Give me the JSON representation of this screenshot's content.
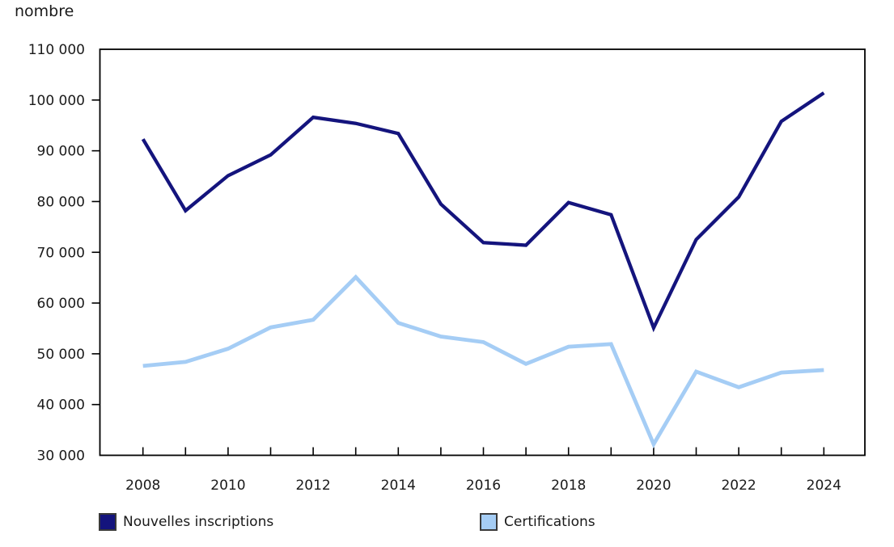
{
  "axis_title": "nombre",
  "colors": {
    "navy": "#14147d",
    "light_blue": "#a5cdf5",
    "axis": "#000000",
    "text": "#1a1a1a",
    "background": "#ffffff"
  },
  "legend": [
    {
      "label": "Nouvelles inscriptions",
      "color": "#14147d"
    },
    {
      "label": "Certifications",
      "color": "#a5cdf5"
    }
  ],
  "chart_data": {
    "type": "line",
    "title": "",
    "ylabel": "nombre",
    "xlabel": "",
    "x": [
      2008,
      2009,
      2010,
      2011,
      2012,
      2013,
      2014,
      2015,
      2016,
      2017,
      2018,
      2019,
      2020,
      2021,
      2022,
      2023,
      2024
    ],
    "x_tick_labels": [
      "2008",
      "2010",
      "2012",
      "2014",
      "2016",
      "2018",
      "2020",
      "2022",
      "2024"
    ],
    "ylim": [
      30000,
      110000
    ],
    "y_ticks": [
      30000,
      40000,
      50000,
      60000,
      70000,
      80000,
      90000,
      100000,
      110000
    ],
    "y_tick_labels": [
      "30 000",
      "40 000",
      "50 000",
      "60 000",
      "70 000",
      "80 000",
      "90 000",
      "100 000",
      "110 000"
    ],
    "grid": false,
    "legend_position": "bottom",
    "series": [
      {
        "name": "Nouvelles inscriptions",
        "color": "#14147d",
        "values": [
          92300,
          78200,
          85100,
          89200,
          96600,
          95400,
          93400,
          79500,
          71900,
          71400,
          79800,
          77400,
          55100,
          72500,
          80900,
          95800,
          101400
        ]
      },
      {
        "name": "Certifications",
        "color": "#a5cdf5",
        "values": [
          47600,
          48400,
          51000,
          55200,
          56700,
          65100,
          56100,
          53400,
          52300,
          48000,
          51400,
          51900,
          32200,
          46500,
          43400,
          46300,
          46800
        ]
      }
    ]
  }
}
